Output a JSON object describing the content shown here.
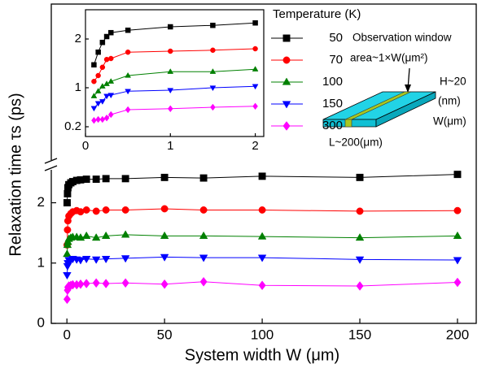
{
  "chart_data": [
    {
      "type": "line",
      "x_label": "System width W (μm)",
      "y_label": "Relaxation time τs (ps)",
      "legend_title": "Temperature (K)",
      "annotations": [
        "Observation window",
        "area~1×W(μm²)",
        "H~20",
        "(nm)",
        "W(μm)",
        "L~200(μm)"
      ],
      "x": [
        0.1,
        0.3,
        0.5,
        1,
        2,
        3,
        5,
        7,
        10,
        15,
        20,
        30,
        50,
        70,
        100,
        150,
        200
      ],
      "xlim": [
        -8,
        209.6
      ],
      "xticks": [
        0,
        50,
        100,
        150,
        200
      ],
      "ylim": [
        0,
        2.6
      ],
      "yticks": [
        0,
        1,
        2
      ],
      "series": [
        {
          "name": "50",
          "color": "#000000",
          "marker": "square",
          "values": [
            2.0,
            2.15,
            2.25,
            2.3,
            2.33,
            2.35,
            2.37,
            2.38,
            2.39,
            2.39,
            2.4,
            2.4,
            2.42,
            2.41,
            2.44,
            2.42,
            2.47
          ]
        },
        {
          "name": "70",
          "color": "#ff0000",
          "marker": "circle",
          "values": [
            1.3,
            1.55,
            1.7,
            1.78,
            1.82,
            1.85,
            1.87,
            1.85,
            1.88,
            1.86,
            1.88,
            1.88,
            1.9,
            1.88,
            1.88,
            1.86,
            1.87
          ]
        },
        {
          "name": "100",
          "color": "#008000",
          "marker": "triangle-up",
          "values": [
            1.15,
            1.3,
            1.35,
            1.4,
            1.42,
            1.43,
            1.43,
            1.42,
            1.45,
            1.42,
            1.45,
            1.47,
            1.45,
            1.45,
            1.44,
            1.42,
            1.45
          ]
        },
        {
          "name": "150",
          "color": "#0000ff",
          "marker": "triangle-down",
          "values": [
            0.8,
            0.95,
            1.0,
            1.05,
            1.05,
            1.07,
            1.06,
            1.05,
            1.07,
            1.06,
            1.07,
            1.08,
            1.1,
            1.09,
            1.09,
            1.06,
            1.05
          ]
        },
        {
          "name": "300",
          "color": "#ff00ff",
          "marker": "diamond",
          "values": [
            0.4,
            0.55,
            0.6,
            0.62,
            0.63,
            0.64,
            0.64,
            0.65,
            0.66,
            0.67,
            0.66,
            0.67,
            0.65,
            0.69,
            0.63,
            0.62,
            0.68
          ]
        }
      ]
    },
    {
      "type": "line",
      "x": [
        0.1,
        0.15,
        0.2,
        0.25,
        0.3,
        0.5,
        1,
        1.5,
        2
      ],
      "xlim": [
        0,
        2.1
      ],
      "xticks": [
        0,
        1,
        2
      ],
      "ylim": [
        0,
        2.6
      ],
      "yticks": [
        0.2,
        1,
        2
      ],
      "series": [
        {
          "color": "#000000",
          "marker": "square",
          "values": [
            1.47,
            1.73,
            1.93,
            2.05,
            2.13,
            2.18,
            2.25,
            2.28,
            2.33
          ]
        },
        {
          "color": "#ff0000",
          "marker": "circle",
          "values": [
            1.13,
            1.25,
            1.42,
            1.58,
            1.6,
            1.73,
            1.75,
            1.77,
            1.8
          ]
        },
        {
          "color": "#008000",
          "marker": "triangle-up",
          "values": [
            0.83,
            0.93,
            1.03,
            1.08,
            1.13,
            1.25,
            1.33,
            1.33,
            1.38
          ]
        },
        {
          "color": "#0000ff",
          "marker": "triangle-down",
          "values": [
            0.58,
            0.68,
            0.72,
            0.83,
            0.85,
            0.93,
            0.95,
            1.0,
            1.03
          ]
        },
        {
          "color": "#ff00ff",
          "marker": "diamond",
          "values": [
            0.33,
            0.35,
            0.35,
            0.38,
            0.45,
            0.55,
            0.57,
            0.6,
            0.62
          ]
        }
      ]
    }
  ]
}
